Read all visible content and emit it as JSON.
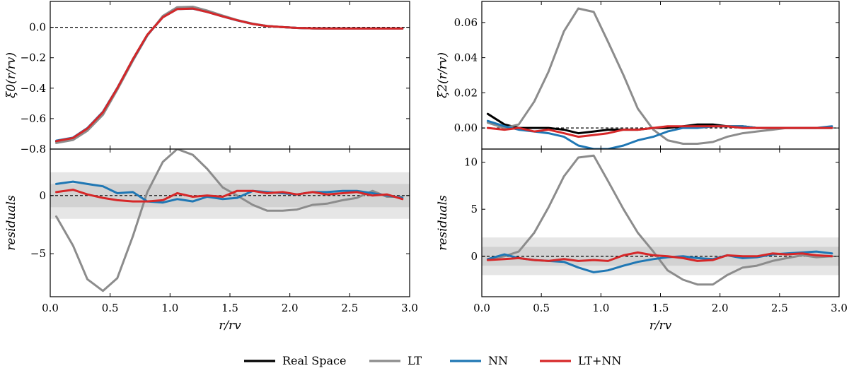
{
  "chart_data": [
    {
      "panel": "top-left",
      "type": "line",
      "xlim": [
        0.0,
        3.0
      ],
      "ylim": [
        -0.8,
        0.17
      ],
      "yticks": [
        {
          "v": 0.0,
          "label": "0.0"
        },
        {
          "v": -0.2,
          "label": "−0.2"
        },
        {
          "v": -0.4,
          "label": "−0.4"
        },
        {
          "v": -0.6,
          "label": "−0.6"
        },
        {
          "v": -0.8,
          "label": "−0.8"
        }
      ],
      "xticks": [],
      "xlabel": "",
      "ylabel": "ξ0(r/rv)",
      "zero_line": true,
      "band": null,
      "x": [
        0.05,
        0.19,
        0.31,
        0.44,
        0.56,
        0.69,
        0.81,
        0.94,
        1.06,
        1.19,
        1.31,
        1.44,
        1.56,
        1.69,
        1.81,
        1.94,
        2.06,
        2.19,
        2.31,
        2.44,
        2.56,
        2.69,
        2.81,
        2.94
      ],
      "series": [
        {
          "name": "Real Space",
          "color": "#000000",
          "values": [
            -0.75,
            -0.728,
            -0.668,
            -0.56,
            -0.4,
            -0.21,
            -0.05,
            0.068,
            0.122,
            0.124,
            0.102,
            0.072,
            0.046,
            0.022,
            0.008,
            0.001,
            -0.004,
            -0.007,
            -0.008,
            -0.008,
            -0.008,
            -0.008,
            -0.008,
            -0.008
          ]
        },
        {
          "name": "LT",
          "color": "#8c8c8c",
          "values": [
            -0.76,
            -0.74,
            -0.68,
            -0.575,
            -0.41,
            -0.22,
            -0.055,
            0.075,
            0.132,
            0.135,
            0.11,
            0.077,
            0.048,
            0.024,
            0.009,
            0.001,
            -0.004,
            -0.007,
            -0.008,
            -0.008,
            -0.008,
            -0.008,
            -0.008,
            -0.008
          ]
        },
        {
          "name": "NN",
          "color": "#1f77b4",
          "values": [
            -0.745,
            -0.725,
            -0.662,
            -0.555,
            -0.398,
            -0.212,
            -0.052,
            0.066,
            0.12,
            0.122,
            0.101,
            0.071,
            0.045,
            0.022,
            0.008,
            0.001,
            -0.004,
            -0.007,
            -0.008,
            -0.008,
            -0.008,
            -0.008,
            -0.008,
            -0.008
          ]
        },
        {
          "name": "LT+NN",
          "color": "#d62728",
          "values": [
            -0.748,
            -0.727,
            -0.665,
            -0.558,
            -0.4,
            -0.21,
            -0.05,
            0.066,
            0.12,
            0.123,
            0.101,
            0.071,
            0.046,
            0.022,
            0.008,
            0.001,
            -0.004,
            -0.007,
            -0.008,
            -0.008,
            -0.008,
            -0.008,
            -0.008,
            -0.008
          ]
        }
      ]
    },
    {
      "panel": "bottom-left",
      "type": "line",
      "xlim": [
        0.0,
        3.0
      ],
      "ylim": [
        -8.7,
        4.0
      ],
      "yticks": [
        {
          "v": 0,
          "label": "0"
        },
        {
          "v": -5,
          "label": "−5"
        }
      ],
      "xticks": [
        {
          "v": 0.0,
          "label": "0.0"
        },
        {
          "v": 0.5,
          "label": "0.5"
        },
        {
          "v": 1.0,
          "label": "1.0"
        },
        {
          "v": 1.5,
          "label": "1.5"
        },
        {
          "v": 2.0,
          "label": "2.0"
        },
        {
          "v": 2.5,
          "label": "2.5"
        },
        {
          "v": 3.0,
          "label": "3.0"
        }
      ],
      "xlabel": "r/rv",
      "ylabel": "residuals",
      "zero_line": true,
      "band": {
        "inner": 1,
        "outer": 2
      },
      "x": [
        0.05,
        0.19,
        0.31,
        0.44,
        0.56,
        0.69,
        0.81,
        0.94,
        1.06,
        1.19,
        1.31,
        1.44,
        1.56,
        1.69,
        1.81,
        1.94,
        2.06,
        2.19,
        2.31,
        2.44,
        2.56,
        2.69,
        2.81,
        2.94
      ],
      "series": [
        {
          "name": "LT",
          "color": "#8c8c8c",
          "values": [
            -1.8,
            -4.3,
            -7.2,
            -8.2,
            -7.1,
            -3.5,
            0.3,
            2.9,
            4.0,
            3.5,
            2.3,
            0.7,
            0.0,
            -0.8,
            -1.3,
            -1.3,
            -1.2,
            -0.8,
            -0.7,
            -0.4,
            -0.2,
            0.4,
            -0.1,
            -0.1
          ]
        },
        {
          "name": "NN",
          "color": "#1f77b4",
          "values": [
            1.0,
            1.2,
            1.0,
            0.8,
            0.2,
            0.3,
            -0.5,
            -0.6,
            -0.3,
            -0.5,
            -0.1,
            -0.3,
            -0.2,
            0.4,
            0.3,
            0.2,
            0.1,
            0.3,
            0.3,
            0.4,
            0.4,
            0.2,
            0.0,
            -0.2
          ]
        },
        {
          "name": "LT+NN",
          "color": "#d62728",
          "values": [
            0.3,
            0.5,
            0.1,
            -0.2,
            -0.4,
            -0.5,
            -0.5,
            -0.4,
            0.2,
            -0.1,
            0.0,
            -0.1,
            0.4,
            0.4,
            0.2,
            0.3,
            0.1,
            0.3,
            0.1,
            0.2,
            0.3,
            0.0,
            0.1,
            -0.3
          ]
        }
      ]
    },
    {
      "panel": "top-right",
      "type": "line",
      "xlim": [
        0.0,
        3.0
      ],
      "ylim": [
        -0.012,
        0.072
      ],
      "yticks": [
        {
          "v": 0.0,
          "label": "0.00"
        },
        {
          "v": 0.02,
          "label": "0.02"
        },
        {
          "v": 0.04,
          "label": "0.04"
        },
        {
          "v": 0.06,
          "label": "0.06"
        }
      ],
      "xticks": [],
      "xlabel": "",
      "ylabel": "ξ2(r/rv)",
      "zero_line": true,
      "band": null,
      "x": [
        0.05,
        0.19,
        0.31,
        0.44,
        0.56,
        0.69,
        0.81,
        0.94,
        1.06,
        1.19,
        1.31,
        1.44,
        1.56,
        1.69,
        1.81,
        1.94,
        2.06,
        2.19,
        2.31,
        2.44,
        2.56,
        2.69,
        2.81,
        2.94
      ],
      "series": [
        {
          "name": "Real Space",
          "color": "#000000",
          "values": [
            0.008,
            0.002,
            0.0,
            0.0,
            0.0,
            -0.001,
            -0.003,
            -0.002,
            -0.001,
            -0.001,
            -0.001,
            0.0,
            0.0,
            0.001,
            0.002,
            0.002,
            0.001,
            0.001,
            0.0,
            0.0,
            0.0,
            0.0,
            0.0,
            0.0
          ]
        },
        {
          "name": "LT",
          "color": "#8c8c8c",
          "values": [
            0.003,
            0.0,
            0.002,
            0.015,
            0.032,
            0.055,
            0.068,
            0.066,
            0.049,
            0.03,
            0.011,
            -0.001,
            -0.007,
            -0.009,
            -0.009,
            -0.008,
            -0.005,
            -0.003,
            -0.002,
            -0.001,
            0.0,
            0.0,
            0.0,
            0.0
          ]
        },
        {
          "name": "NN",
          "color": "#1f77b4",
          "values": [
            0.004,
            0.001,
            -0.001,
            -0.002,
            -0.003,
            -0.005,
            -0.01,
            -0.012,
            -0.012,
            -0.01,
            -0.007,
            -0.005,
            -0.002,
            0.0,
            0.0,
            0.001,
            0.001,
            0.001,
            0.0,
            0.0,
            0.0,
            0.0,
            0.0,
            0.001
          ]
        },
        {
          "name": "LT+NN",
          "color": "#d62728",
          "values": [
            0.0,
            -0.001,
            0.0,
            -0.002,
            -0.001,
            -0.003,
            -0.005,
            -0.004,
            -0.003,
            -0.001,
            -0.001,
            0.0,
            0.001,
            0.001,
            0.001,
            0.001,
            0.001,
            0.0,
            0.0,
            0.0,
            0.0,
            0.0,
            0.0,
            0.0
          ]
        }
      ]
    },
    {
      "panel": "bottom-right",
      "type": "line",
      "xlim": [
        0.0,
        3.0
      ],
      "ylim": [
        -4.3,
        11.4
      ],
      "yticks": [
        {
          "v": 10,
          "label": "10"
        },
        {
          "v": 5,
          "label": "5"
        },
        {
          "v": 0,
          "label": "0"
        }
      ],
      "xticks": [
        {
          "v": 0.0,
          "label": "0.0"
        },
        {
          "v": 0.5,
          "label": "0.5"
        },
        {
          "v": 1.0,
          "label": "1.0"
        },
        {
          "v": 1.5,
          "label": "1.5"
        },
        {
          "v": 2.0,
          "label": "2.0"
        },
        {
          "v": 2.5,
          "label": "2.5"
        },
        {
          "v": 3.0,
          "label": "3.0"
        }
      ],
      "xlabel": "r/rv",
      "ylabel": "residuals",
      "zero_line": true,
      "band": {
        "inner": 1,
        "outer": 2
      },
      "x": [
        0.05,
        0.19,
        0.31,
        0.44,
        0.56,
        0.69,
        0.81,
        0.94,
        1.06,
        1.19,
        1.31,
        1.44,
        1.56,
        1.69,
        1.81,
        1.94,
        2.06,
        2.19,
        2.31,
        2.44,
        2.56,
        2.69,
        2.81,
        2.94
      ],
      "series": [
        {
          "name": "LT",
          "color": "#8c8c8c",
          "values": [
            -0.3,
            0.0,
            0.5,
            2.5,
            5.2,
            8.5,
            10.5,
            10.7,
            8.0,
            5.0,
            2.5,
            0.5,
            -1.5,
            -2.5,
            -3.0,
            -3.0,
            -2.0,
            -1.2,
            -1.0,
            -0.5,
            -0.2,
            0.1,
            -0.1,
            0.0
          ]
        },
        {
          "name": "NN",
          "color": "#1f77b4",
          "values": [
            -0.3,
            0.2,
            -0.2,
            -0.4,
            -0.5,
            -0.6,
            -1.2,
            -1.7,
            -1.5,
            -1.0,
            -0.6,
            -0.3,
            -0.1,
            0.0,
            -0.2,
            -0.3,
            0.1,
            -0.2,
            -0.1,
            0.2,
            0.3,
            0.4,
            0.5,
            0.3
          ]
        },
        {
          "name": "LT+NN",
          "color": "#d62728",
          "values": [
            -0.4,
            -0.3,
            -0.2,
            -0.4,
            -0.5,
            -0.3,
            -0.5,
            -0.4,
            -0.5,
            0.1,
            0.4,
            0.1,
            0.0,
            -0.2,
            -0.5,
            -0.4,
            0.1,
            0.0,
            0.0,
            0.3,
            0.2,
            0.3,
            0.1,
            0.0
          ]
        }
      ]
    }
  ],
  "legend": {
    "placement": "bottom-center",
    "entries": [
      {
        "label": "Real Space",
        "color": "#000000"
      },
      {
        "label": "LT",
        "color": "#8c8c8c"
      },
      {
        "label": "NN",
        "color": "#1f77b4"
      },
      {
        "label": "LT+NN",
        "color": "#d62728"
      }
    ]
  },
  "colors": {
    "band_outer": "#e6e6e6",
    "band_inner": "#d2d2d2",
    "frame": "#000000"
  }
}
